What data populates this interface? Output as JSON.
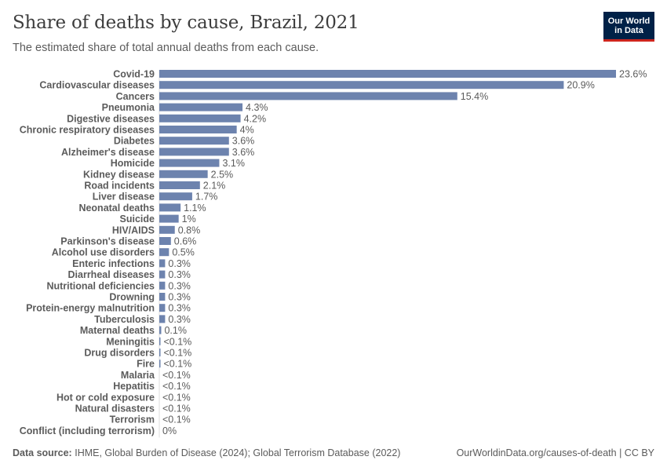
{
  "header": {
    "title": "Share of deaths by cause, Brazil, 2021",
    "subtitle": "The estimated share of total annual deaths from each cause.",
    "logo_line1": "Our World",
    "logo_line2": "in Data"
  },
  "footer": {
    "source_label": "Data source:",
    "source_text": "IHME, Global Burden of Disease (2024); Global Terrorism Database (2022)",
    "url": "OurWorldinData.org/causes-of-death | CC BY"
  },
  "colors": {
    "bar": "#6d83ae",
    "logo_bg": "#002147",
    "logo_accent": "#ce261e"
  },
  "chart_data": {
    "type": "bar",
    "orientation": "horizontal",
    "title": "Share of deaths by cause, Brazil, 2021",
    "xlim": [
      0,
      23.6
    ],
    "grid": false,
    "categories": [
      "Covid-19",
      "Cardiovascular diseases",
      "Cancers",
      "Pneumonia",
      "Digestive diseases",
      "Chronic respiratory diseases",
      "Diabetes",
      "Alzheimer's disease",
      "Homicide",
      "Kidney disease",
      "Road incidents",
      "Liver disease",
      "Neonatal deaths",
      "Suicide",
      "HIV/AIDS",
      "Parkinson's disease",
      "Alcohol use disorders",
      "Enteric infections",
      "Diarrheal diseases",
      "Nutritional deficiencies",
      "Drowning",
      "Protein-energy malnutrition",
      "Tuberculosis",
      "Maternal deaths",
      "Meningitis",
      "Drug disorders",
      "Fire",
      "Malaria",
      "Hepatitis",
      "Hot or cold exposure",
      "Natural disasters",
      "Terrorism",
      "Conflict (including terrorism)"
    ],
    "values": [
      23.6,
      20.9,
      15.4,
      4.3,
      4.2,
      4.0,
      3.6,
      3.6,
      3.1,
      2.5,
      2.1,
      1.7,
      1.1,
      1.0,
      0.8,
      0.6,
      0.5,
      0.3,
      0.3,
      0.3,
      0.3,
      0.3,
      0.3,
      0.1,
      0.05,
      0.05,
      0.05,
      0.0,
      0.0,
      0.0,
      0.0,
      0.0,
      0.0
    ],
    "value_labels": [
      "23.6%",
      "20.9%",
      "15.4%",
      "4.3%",
      "4.2%",
      "4%",
      "3.6%",
      "3.6%",
      "3.1%",
      "2.5%",
      "2.1%",
      "1.7%",
      "1.1%",
      "1%",
      "0.8%",
      "0.6%",
      "0.5%",
      "0.3%",
      "0.3%",
      "0.3%",
      "0.3%",
      "0.3%",
      "0.3%",
      "0.1%",
      "<0.1%",
      "<0.1%",
      "<0.1%",
      "<0.1%",
      "<0.1%",
      "<0.1%",
      "<0.1%",
      "<0.1%",
      "0%"
    ]
  }
}
